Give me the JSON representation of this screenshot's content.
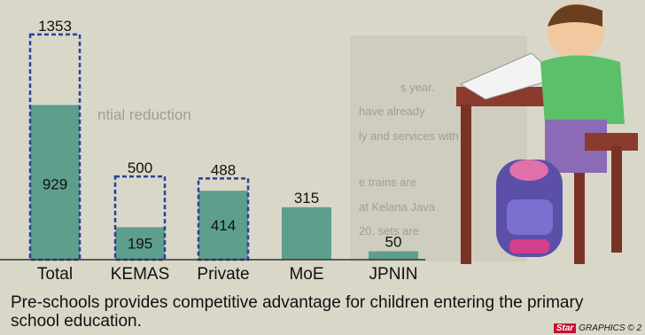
{
  "chart_data": {
    "type": "bar",
    "categories": [
      "Total",
      "KEMAS",
      "Private",
      "MoE",
      "JPNIN"
    ],
    "values": [
      929,
      195,
      414,
      315,
      50
    ],
    "targets": [
      1353,
      500,
      488,
      null,
      null
    ],
    "ylim": [
      0,
      1400
    ],
    "colors": {
      "bar": "#5e9e8c",
      "target_outline": "#2a3f9b",
      "text": "#111111"
    }
  },
  "caption": "Pre-schools provides competitive advantage for children entering the primary school education.",
  "credit": {
    "logo": "Star",
    "text": "GRAPHICS © 2"
  },
  "background_text": [
    "ntial reduction",
    "s year.",
    "have already",
    "ly and services with",
    "e trains are",
    "at Kelana Java",
    "20. sets are"
  ]
}
